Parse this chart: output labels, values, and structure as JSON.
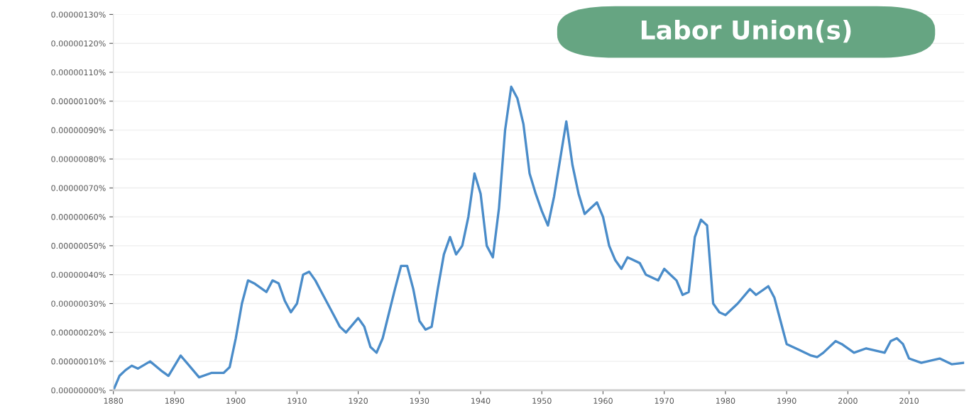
{
  "chart_data": {
    "type": "line",
    "title": "Labor Union(s)",
    "x": [
      1880,
      1881,
      1882,
      1883,
      1884,
      1886,
      1888,
      1889,
      1891,
      1893,
      1894,
      1896,
      1898,
      1899,
      1900,
      1901,
      1902,
      1903,
      1905,
      1906,
      1907,
      1908,
      1909,
      1910,
      1911,
      1912,
      1913,
      1914,
      1915,
      1916,
      1917,
      1918,
      1920,
      1921,
      1922,
      1923,
      1924,
      1926,
      1927,
      1928,
      1929,
      1930,
      1931,
      1932,
      1933,
      1934,
      1935,
      1936,
      1937,
      1938,
      1939,
      1940,
      1941,
      1942,
      1943,
      1944,
      1945,
      1946,
      1947,
      1948,
      1949,
      1950,
      1951,
      1952,
      1953,
      1954,
      1955,
      1956,
      1957,
      1958,
      1959,
      1960,
      1961,
      1962,
      1963,
      1964,
      1965,
      1966,
      1967,
      1968,
      1969,
      1970,
      1971,
      1972,
      1973,
      1974,
      1975,
      1976,
      1977,
      1978,
      1979,
      1980,
      1982,
      1984,
      1985,
      1987,
      1988,
      1989,
      1990,
      1992,
      1994,
      1995,
      1996,
      1998,
      1999,
      2001,
      2003,
      2004,
      2006,
      2007,
      2008,
      2009,
      2010,
      2012,
      2015,
      2017,
      2019
    ],
    "series": [
      {
        "color": "#4a8cc9",
        "values": [
          0,
          5e-08,
          7e-08,
          8.5e-08,
          7.5e-08,
          1e-07,
          6.5e-08,
          5e-08,
          1.2e-07,
          7e-08,
          4.5e-08,
          6e-08,
          6e-08,
          8e-08,
          1.8e-07,
          3e-07,
          3.8e-07,
          3.7e-07,
          3.4e-07,
          3.8e-07,
          3.7e-07,
          3.1e-07,
          2.7e-07,
          3e-07,
          4e-07,
          4.1e-07,
          3.8e-07,
          3.4e-07,
          3e-07,
          2.6e-07,
          2.2e-07,
          2e-07,
          2.5e-07,
          2.2e-07,
          1.5e-07,
          1.3e-07,
          1.8e-07,
          3.5e-07,
          4.3e-07,
          4.3e-07,
          3.5e-07,
          2.4e-07,
          2.1e-07,
          2.2e-07,
          3.5e-07,
          4.7e-07,
          5.3e-07,
          4.7e-07,
          5e-07,
          6e-07,
          7.5e-07,
          6.8e-07,
          5e-07,
          4.6e-07,
          6.3e-07,
          9e-07,
          1.05e-06,
          1.01e-06,
          9.2e-07,
          7.5e-07,
          6.8e-07,
          6.2e-07,
          5.7e-07,
          6.7e-07,
          8e-07,
          9.3e-07,
          7.8e-07,
          6.8e-07,
          6.1e-07,
          6.3e-07,
          6.5e-07,
          6e-07,
          5e-07,
          4.5e-07,
          4.2e-07,
          4.6e-07,
          4.5e-07,
          4.4e-07,
          4e-07,
          3.9e-07,
          3.8e-07,
          4.2e-07,
          4e-07,
          3.8e-07,
          3.3e-07,
          3.4e-07,
          5.3e-07,
          5.9e-07,
          5.7e-07,
          3e-07,
          2.7e-07,
          2.6e-07,
          3e-07,
          3.5e-07,
          3.3e-07,
          3.6e-07,
          3.2e-07,
          2.4e-07,
          1.6e-07,
          1.4e-07,
          1.2e-07,
          1.15e-07,
          1.3e-07,
          1.7e-07,
          1.6e-07,
          1.3e-07,
          1.45e-07,
          1.4e-07,
          1.3e-07,
          1.7e-07,
          1.8e-07,
          1.6e-07,
          1.1e-07,
          9.5e-08,
          1.1e-07,
          9e-08,
          9.5e-08
        ]
      }
    ],
    "xlim": [
      1880,
      2019
    ],
    "xticks": [
      1880,
      1890,
      1900,
      1910,
      1920,
      1930,
      1940,
      1950,
      1960,
      1970,
      1980,
      1990,
      2000,
      2010
    ],
    "ylim": [
      0,
      1.3e-06
    ],
    "yticks": [
      {
        "value": 0,
        "label": "0.00000000%"
      },
      {
        "value": 1e-07,
        "label": "0.00000010%"
      },
      {
        "value": 2e-07,
        "label": "0.00000020%"
      },
      {
        "value": 3e-07,
        "label": "0.00000030%"
      },
      {
        "value": 4e-07,
        "label": "0.00000040%"
      },
      {
        "value": 5e-07,
        "label": "0.00000050%"
      },
      {
        "value": 6e-07,
        "label": "0.00000060%"
      },
      {
        "value": 7e-07,
        "label": "0.00000070%"
      },
      {
        "value": 8e-07,
        "label": "0.00000080%"
      },
      {
        "value": 9e-07,
        "label": "0.00000090%"
      },
      {
        "value": 1e-06,
        "label": "0.00000100%"
      },
      {
        "value": 1.1e-06,
        "label": "0.00000110%"
      },
      {
        "value": 1.2e-06,
        "label": "0.00000120%"
      },
      {
        "value": 1.3e-06,
        "label": "0.00000130%"
      }
    ],
    "grid": "y",
    "line_style": "solid"
  }
}
